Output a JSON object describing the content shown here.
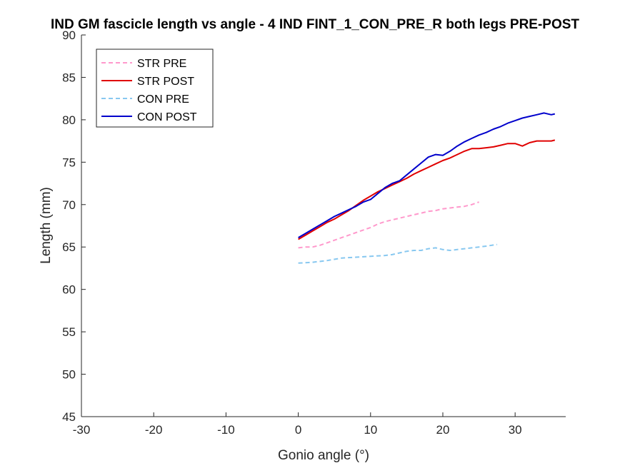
{
  "chart_data": {
    "type": "line",
    "title": "IND GM fascicle length vs angle - 4 IND FINT_1_CON_PRE_R both legs PRE-POST",
    "xlabel": "Gonio angle (°)",
    "ylabel": "Length (mm)",
    "xlim": [
      -30,
      37
    ],
    "ylim": [
      45,
      90
    ],
    "xticks": [
      -30,
      -20,
      -10,
      0,
      10,
      20,
      30
    ],
    "yticks": [
      45,
      50,
      55,
      60,
      65,
      70,
      75,
      80,
      85,
      90
    ],
    "grid": false,
    "legend_position": "top-left",
    "series": [
      {
        "name": "STR PRE",
        "color": "#FF99CC",
        "dash": "dashed",
        "x": [
          0,
          1,
          2,
          3,
          4,
          5,
          6,
          7,
          8,
          9,
          10,
          11,
          12,
          13,
          14,
          15,
          16,
          17,
          18,
          19,
          20,
          21,
          22,
          23,
          24,
          25
        ],
        "y": [
          64.9,
          65.0,
          65.0,
          65.2,
          65.5,
          65.8,
          66.1,
          66.4,
          66.7,
          67.0,
          67.3,
          67.7,
          68.0,
          68.2,
          68.4,
          68.6,
          68.8,
          69.0,
          69.2,
          69.3,
          69.5,
          69.6,
          69.7,
          69.8,
          70.0,
          70.3
        ]
      },
      {
        "name": "STR POST",
        "color": "#E00000",
        "dash": "solid",
        "x": [
          0,
          1,
          2,
          3,
          4,
          5,
          6,
          7,
          8,
          9,
          10,
          11,
          12,
          13,
          14,
          15,
          16,
          17,
          18,
          19,
          20,
          21,
          22,
          23,
          24,
          25,
          26,
          27,
          28,
          29,
          30,
          31,
          32,
          33,
          34,
          35,
          35.5
        ],
        "y": [
          65.9,
          66.4,
          66.9,
          67.4,
          67.9,
          68.3,
          68.8,
          69.3,
          69.9,
          70.5,
          71.0,
          71.5,
          71.9,
          72.3,
          72.7,
          73.1,
          73.6,
          74.0,
          74.4,
          74.8,
          75.2,
          75.5,
          75.9,
          76.3,
          76.6,
          76.6,
          76.7,
          76.8,
          77.0,
          77.2,
          77.2,
          76.9,
          77.3,
          77.5,
          77.5,
          77.5,
          77.6
        ]
      },
      {
        "name": "CON PRE",
        "color": "#88C8F0",
        "dash": "dashed",
        "x": [
          0,
          2,
          4,
          6,
          8,
          10,
          12,
          13,
          14,
          15,
          16,
          17,
          18,
          19,
          20,
          21,
          22,
          23,
          24,
          25,
          26,
          27.5
        ],
        "y": [
          63.1,
          63.2,
          63.4,
          63.7,
          63.8,
          63.9,
          64.0,
          64.1,
          64.3,
          64.5,
          64.6,
          64.6,
          64.8,
          64.9,
          64.7,
          64.6,
          64.7,
          64.8,
          64.9,
          65.0,
          65.1,
          65.3
        ]
      },
      {
        "name": "CON POST",
        "color": "#0000CC",
        "dash": "solid",
        "x": [
          0,
          1,
          2,
          3,
          4,
          5,
          6,
          7,
          8,
          9,
          10,
          11,
          12,
          13,
          14,
          15,
          16,
          17,
          18,
          19,
          20,
          21,
          22,
          23,
          24,
          25,
          26,
          27,
          28,
          29,
          30,
          31,
          32,
          33,
          34,
          35,
          35.5
        ],
        "y": [
          66.1,
          66.6,
          67.1,
          67.6,
          68.1,
          68.6,
          69.0,
          69.4,
          69.8,
          70.3,
          70.6,
          71.3,
          72.0,
          72.5,
          72.8,
          73.5,
          74.2,
          74.9,
          75.6,
          75.9,
          75.8,
          76.3,
          76.9,
          77.4,
          77.8,
          78.2,
          78.5,
          78.9,
          79.2,
          79.6,
          79.9,
          80.2,
          80.4,
          80.6,
          80.8,
          80.6,
          80.7
        ]
      }
    ]
  }
}
